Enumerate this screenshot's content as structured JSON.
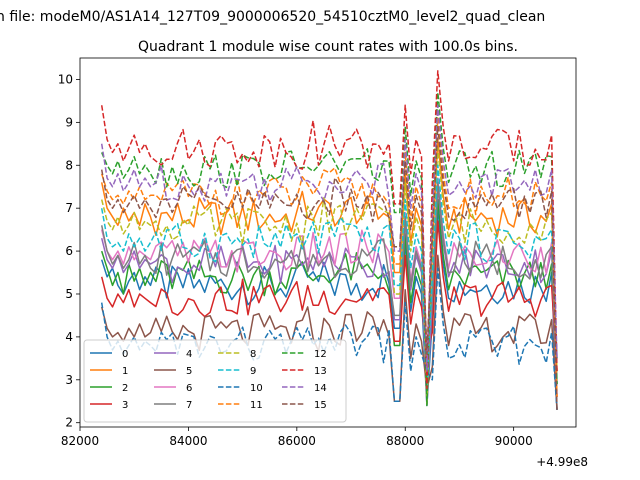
{
  "suptitle": "n file: modeM0/AS1A14_127T09_9000006520_54510cztM0_level2_quad_clean",
  "chart_data": {
    "type": "line",
    "title": "Quadrant 1 module wise count rates with 100.0s bins.",
    "xlabel": "",
    "ylabel": "",
    "x_offset_label": "+4.99e8",
    "xlim": [
      82000,
      91150
    ],
    "ylim": [
      1.9,
      10.5
    ],
    "x_ticks": [
      82000,
      84000,
      86000,
      88000,
      90000
    ],
    "x_tick_labels": [
      "82000",
      "84000",
      "86000",
      "88000",
      "90000"
    ],
    "y_ticks": [
      2,
      3,
      4,
      5,
      6,
      7,
      8,
      9,
      10
    ],
    "y_tick_labels": [
      "2",
      "3",
      "4",
      "5",
      "6",
      "7",
      "8",
      "9",
      "10"
    ],
    "grid": false,
    "legend_position": "lower-left",
    "legend_columns": 4,
    "x_start": 82400,
    "x_step": 100,
    "colors": [
      "#1f77b4",
      "#ff7f0e",
      "#2ca02c",
      "#d62728",
      "#9467bd",
      "#8c564b",
      "#e377c2",
      "#7f7f7f",
      "#bcbd22",
      "#17becf"
    ],
    "series": [
      {
        "name": "0",
        "level": 5.2,
        "color": "#1f77b4",
        "dash": false,
        "pattern": [
          5.8,
          5.4,
          5.6,
          5.2,
          5.0,
          5.3,
          5.5,
          5.1,
          5.4,
          5.2
        ]
      },
      {
        "name": "1",
        "level": 6.8,
        "color": "#ff7f0e",
        "dash": false,
        "pattern": [
          7.6,
          7.0,
          6.8,
          6.6,
          7.0,
          6.7,
          6.9,
          6.6,
          7.1,
          6.8
        ]
      },
      {
        "name": "2",
        "level": 5.4,
        "color": "#2ca02c",
        "dash": false,
        "pattern": [
          6.0,
          5.6,
          5.2,
          5.5,
          5.0,
          5.7,
          5.3,
          5.6,
          5.2,
          5.5
        ]
      },
      {
        "name": "3",
        "level": 4.9,
        "color": "#d62728",
        "dash": false,
        "pattern": [
          5.4,
          4.9,
          4.7,
          5.0,
          4.8,
          5.1,
          4.7,
          5.0,
          4.9,
          4.8
        ]
      },
      {
        "name": "4",
        "level": 5.7,
        "color": "#9467bd",
        "dash": false,
        "pattern": [
          6.3,
          5.8,
          5.6,
          5.9,
          5.5,
          5.7,
          6.0,
          5.6,
          5.8,
          5.7
        ]
      },
      {
        "name": "5",
        "level": 4.1,
        "color": "#8c564b",
        "dash": false,
        "pattern": [
          4.7,
          4.2,
          4.0,
          4.1,
          3.9,
          4.2,
          4.0,
          4.3,
          4.0,
          4.1
        ]
      },
      {
        "name": "6",
        "level": 5.9,
        "color": "#e377c2",
        "dash": false,
        "pattern": [
          6.5,
          6.0,
          5.8,
          6.0,
          5.7,
          6.1,
          5.8,
          6.0,
          5.9,
          5.8
        ]
      },
      {
        "name": "7",
        "level": 5.8,
        "color": "#7f7f7f",
        "dash": false,
        "pattern": [
          6.6,
          6.0,
          5.7,
          5.9,
          5.6,
          5.8,
          6.2,
          5.7,
          5.9,
          5.6
        ]
      },
      {
        "name": "8",
        "level": 6.6,
        "color": "#bcbd22",
        "dash": true,
        "pattern": [
          7.2,
          6.7,
          6.5,
          6.8,
          6.4,
          6.6,
          6.9,
          6.5,
          6.7,
          6.6
        ]
      },
      {
        "name": "9",
        "level": 6.2,
        "color": "#17becf",
        "dash": true,
        "pattern": [
          7.0,
          6.3,
          6.1,
          6.2,
          6.0,
          6.4,
          6.1,
          6.3,
          6.0,
          6.2
        ]
      },
      {
        "name": "10",
        "level": 3.8,
        "color": "#1f77b4",
        "dash": true,
        "pattern": [
          4.8,
          4.0,
          3.7,
          3.9,
          3.6,
          3.8,
          4.0,
          3.7,
          3.9,
          3.8
        ]
      },
      {
        "name": "11",
        "level": 7.3,
        "color": "#ff7f0e",
        "dash": true,
        "pattern": [
          7.8,
          7.4,
          7.2,
          7.3,
          7.1,
          7.4,
          7.2,
          7.5,
          7.2,
          7.3
        ]
      },
      {
        "name": "12",
        "level": 7.9,
        "color": "#2ca02c",
        "dash": true,
        "pattern": [
          8.3,
          8.0,
          7.8,
          8.1,
          7.7,
          7.9,
          8.2,
          7.8,
          8.0,
          7.8
        ]
      },
      {
        "name": "13",
        "level": 8.4,
        "color": "#d62728",
        "dash": true,
        "pattern": [
          9.4,
          8.6,
          8.3,
          8.5,
          8.1,
          8.4,
          8.7,
          8.3,
          8.5,
          8.2
        ]
      },
      {
        "name": "14",
        "level": 7.6,
        "color": "#9467bd",
        "dash": true,
        "pattern": [
          8.5,
          7.7,
          7.5,
          7.8,
          7.4,
          7.6,
          7.9,
          7.5,
          7.7,
          7.5
        ]
      },
      {
        "name": "15",
        "level": 7.1,
        "color": "#8c564b",
        "dash": true,
        "pattern": [
          7.9,
          7.2,
          7.0,
          7.2,
          6.9,
          7.1,
          7.3,
          7.0,
          7.2,
          7.0
        ]
      }
    ]
  }
}
